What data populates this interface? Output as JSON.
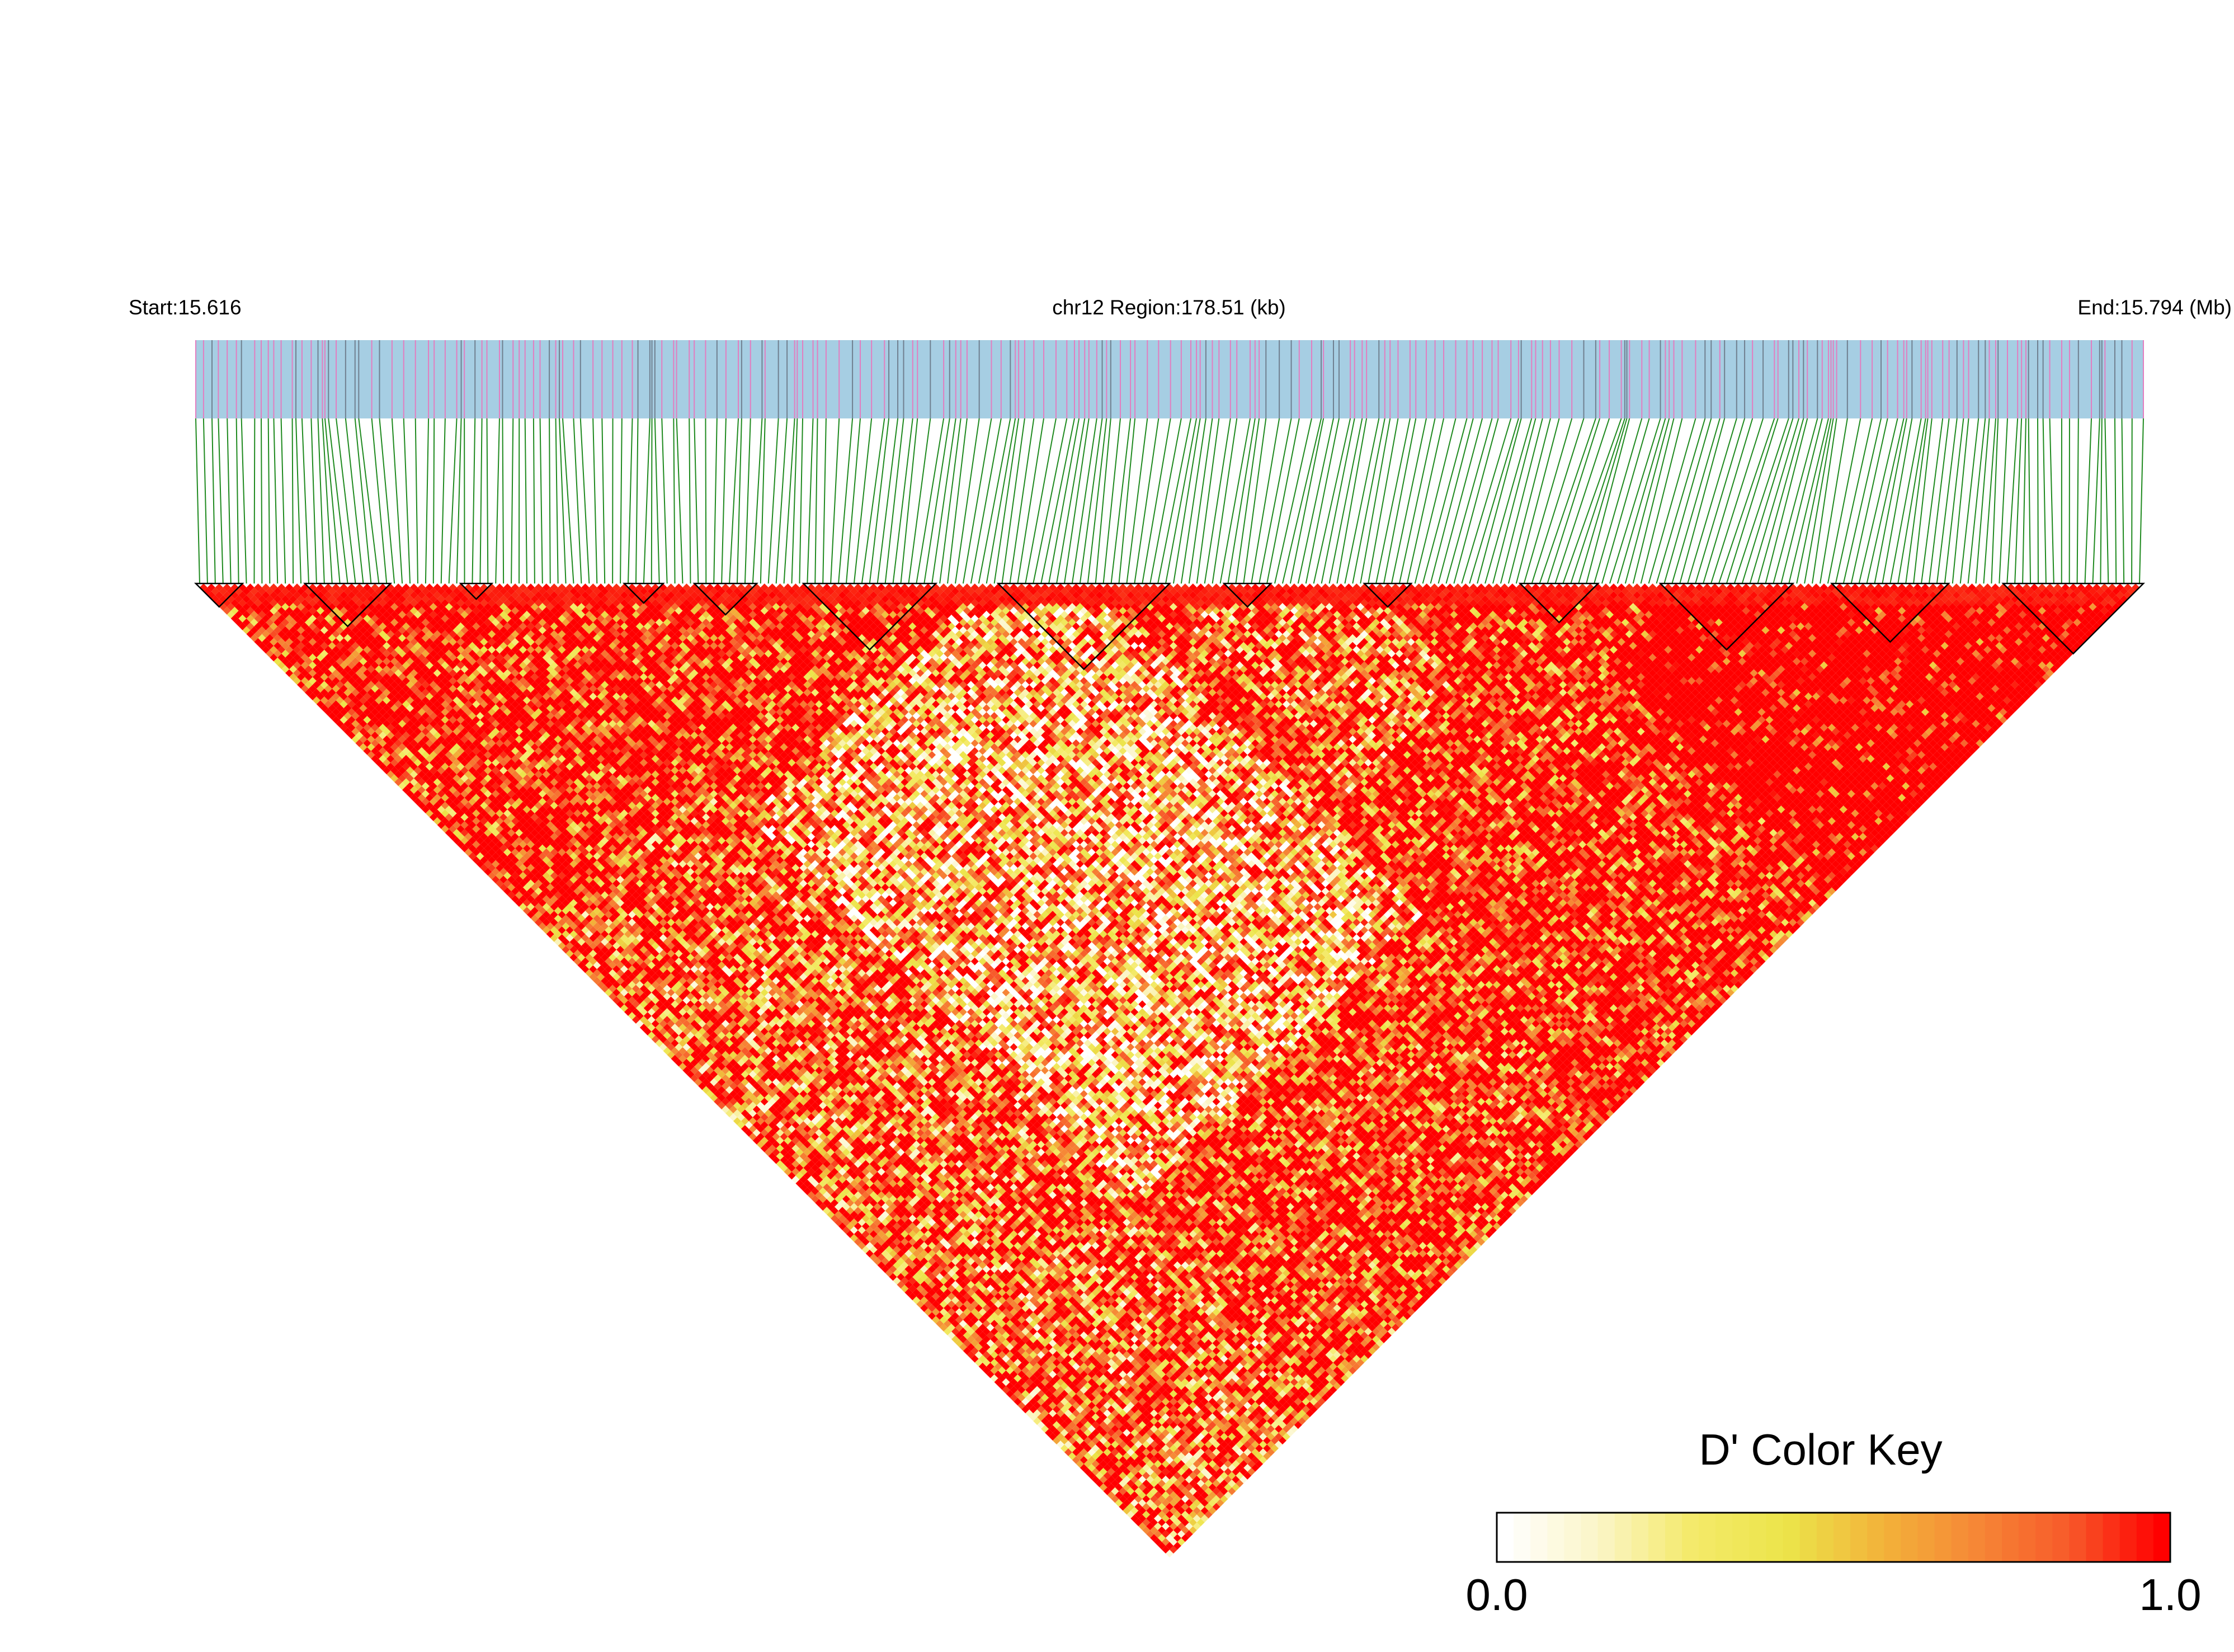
{
  "chart_data": {
    "type": "heatmap",
    "kind": "LD triangle heatmap (pairwise linkage disequilibrium)",
    "header": {
      "start_label": "Start:15.616",
      "region_label": "chr12 Region:178.51 (kb)",
      "end_label": "End:15.794 (Mb)"
    },
    "region": {
      "chromosome": "chr12",
      "start_mb": 15.616,
      "end_mb": 15.794,
      "length_kb": 178.51
    },
    "snp_count": 250,
    "colors": {
      "track_background": "#a6cee3",
      "track_tick_pink": "#e27ec0",
      "track_tick_gray": "#708090",
      "connector_lines": "#1f8a1f",
      "block_outline": "#000000",
      "ld_high": "#ff0000",
      "ld_low": "#ffffff"
    },
    "ld_blocks_snp_index_ranges": [
      [
        0,
        6
      ],
      [
        14,
        25
      ],
      [
        34,
        38
      ],
      [
        55,
        60
      ],
      [
        64,
        72
      ],
      [
        78,
        95
      ],
      [
        103,
        125
      ],
      [
        132,
        138
      ],
      [
        150,
        156
      ],
      [
        170,
        180
      ],
      [
        188,
        205
      ],
      [
        210,
        225
      ],
      [
        232,
        250
      ]
    ],
    "color_key": {
      "title": "D' Color Key",
      "min_label": "0.0",
      "max_label": "1.0",
      "range": [
        0,
        1
      ],
      "stops": [
        "#ffffff",
        "#fbf5c6",
        "#f4ea6a",
        "#ece44a",
        "#f2b43a",
        "#f68836",
        "#f75a2a",
        "#ff0000"
      ]
    }
  }
}
